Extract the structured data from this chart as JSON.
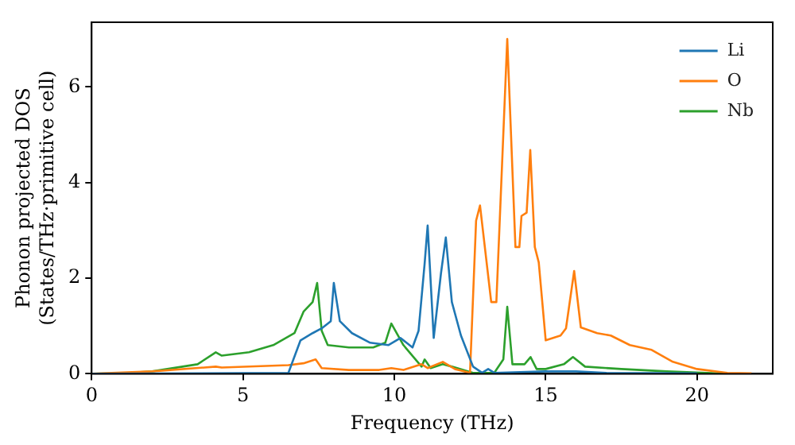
{
  "chart_data": {
    "type": "line",
    "xlabel": "Frequency (THz)",
    "ylabel": "Phonon projected DOS\n(States/THz·primitive cell)",
    "xlim": [
      0,
      22.5
    ],
    "ylim": [
      0,
      7.35
    ],
    "xticks": [
      0,
      5,
      10,
      15,
      20
    ],
    "yticks": [
      0,
      2,
      4,
      6
    ],
    "grid": false,
    "legend": "top right",
    "marker": "none",
    "line_style": "solid",
    "series": [
      {
        "name": "Li",
        "color": "#1f77b4",
        "x": [
          0,
          6.5,
          6.9,
          7.3,
          7.6,
          7.9,
          8.0,
          8.2,
          8.6,
          9.2,
          9.8,
          10.2,
          10.6,
          10.8,
          11.0,
          11.1,
          11.3,
          11.54,
          11.7,
          11.9,
          12.2,
          12.6,
          12.9,
          13.1,
          13.3,
          15,
          16,
          17,
          20
        ],
        "values": [
          0,
          0.02,
          0.7,
          0.85,
          0.95,
          1.1,
          1.9,
          1.1,
          0.85,
          0.65,
          0.6,
          0.75,
          0.55,
          0.9,
          2.3,
          3.1,
          0.75,
          2.1,
          2.85,
          1.5,
          0.8,
          0.15,
          0.02,
          0.1,
          0.02,
          0.05,
          0.05,
          0.02,
          0.01
        ]
      },
      {
        "name": "O",
        "color": "#ff7f0e",
        "x": [
          0,
          2,
          4.1,
          4.3,
          6.5,
          7.0,
          7.4,
          7.6,
          8.5,
          9.5,
          9.9,
          10.3,
          10.9,
          11.1,
          11.6,
          12.0,
          12.5,
          12.7,
          12.83,
          13.2,
          13.37,
          13.73,
          14.0,
          14.13,
          14.2,
          14.37,
          14.49,
          14.64,
          14.77,
          15.0,
          15.49,
          15.67,
          15.94,
          16.16,
          16.7,
          17.15,
          17.78,
          18.5,
          19.2,
          20.0,
          21.0,
          21.8
        ],
        "values": [
          0,
          0.05,
          0.15,
          0.13,
          0.18,
          0.22,
          0.3,
          0.12,
          0.08,
          0.08,
          0.12,
          0.08,
          0.2,
          0.12,
          0.25,
          0.1,
          0.02,
          3.2,
          3.52,
          1.5,
          1.5,
          7.0,
          2.65,
          2.65,
          3.3,
          3.37,
          4.68,
          2.65,
          2.33,
          0.7,
          0.8,
          0.95,
          2.15,
          0.97,
          0.85,
          0.8,
          0.6,
          0.5,
          0.25,
          0.1,
          0.02,
          0.01
        ]
      },
      {
        "name": "Nb",
        "color": "#2ca02c",
        "x": [
          0,
          1,
          2,
          3.5,
          4.1,
          4.3,
          5.2,
          6.0,
          6.7,
          7.0,
          7.3,
          7.45,
          7.6,
          7.8,
          8.5,
          9.3,
          9.7,
          9.9,
          10.3,
          10.7,
          10.9,
          11.0,
          11.2,
          11.6,
          11.9,
          12.6,
          13.3,
          13.6,
          13.73,
          13.9,
          14.3,
          14.5,
          14.7,
          15.0,
          15.6,
          15.9,
          16.3,
          17.5,
          19,
          21
        ],
        "values": [
          0,
          0.01,
          0.05,
          0.2,
          0.45,
          0.38,
          0.45,
          0.6,
          0.85,
          1.3,
          1.5,
          1.9,
          0.9,
          0.6,
          0.55,
          0.55,
          0.65,
          1.05,
          0.6,
          0.3,
          0.15,
          0.3,
          0.12,
          0.2,
          0.15,
          0.02,
          0.02,
          0.3,
          1.4,
          0.2,
          0.2,
          0.35,
          0.1,
          0.1,
          0.2,
          0.35,
          0.15,
          0.1,
          0.05,
          0
        ]
      }
    ]
  }
}
